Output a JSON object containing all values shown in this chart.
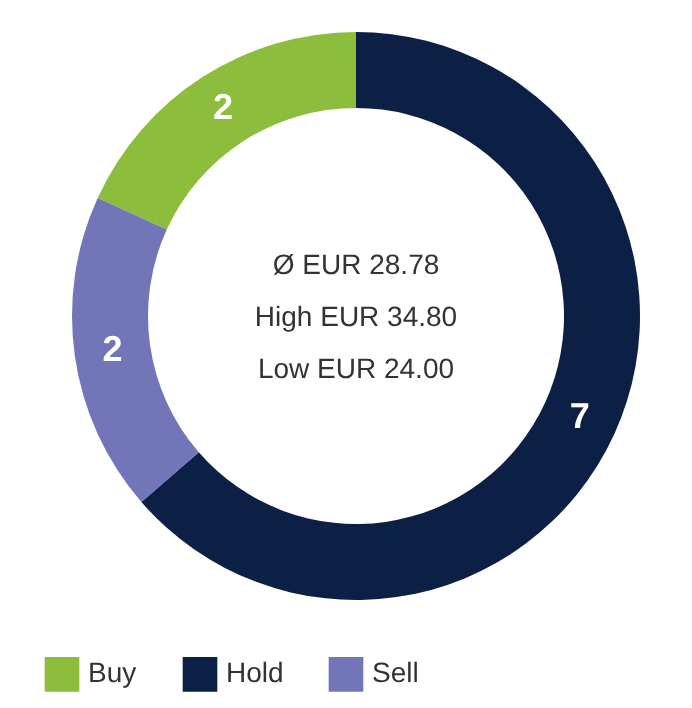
{
  "chart_data": {
    "type": "donut",
    "categories": [
      "Buy",
      "Hold",
      "Sell"
    ],
    "values": [
      2,
      7,
      2
    ],
    "colors": [
      "#8cbd3c",
      "#0c1f44",
      "#7276b8"
    ],
    "data_labels": true,
    "legend": "bottom",
    "annotations": [
      "Ø EUR 28.78",
      "High EUR 34.80",
      "Low EUR 24.00"
    ]
  }
}
